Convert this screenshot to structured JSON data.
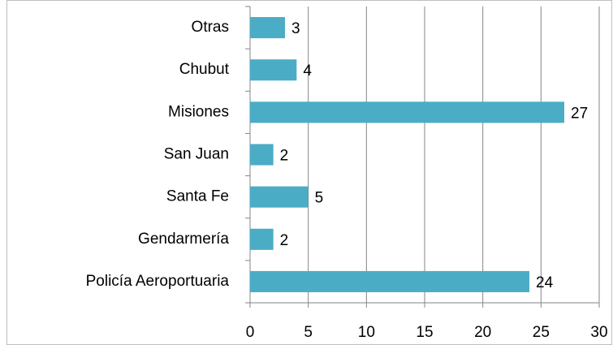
{
  "chart_data": {
    "type": "bar",
    "orientation": "horizontal",
    "categories": [
      "Otras",
      "Chubut",
      "Misiones",
      "San Juan",
      "Santa Fe",
      "Gendarmería",
      "Policía Aeroportuaria"
    ],
    "values": [
      3,
      4,
      27,
      2,
      5,
      2,
      24
    ],
    "color": "#4bacc6",
    "xlim": [
      0,
      30
    ],
    "xticks": [
      0,
      5,
      10,
      15,
      20,
      25,
      30
    ],
    "grid": true
  }
}
